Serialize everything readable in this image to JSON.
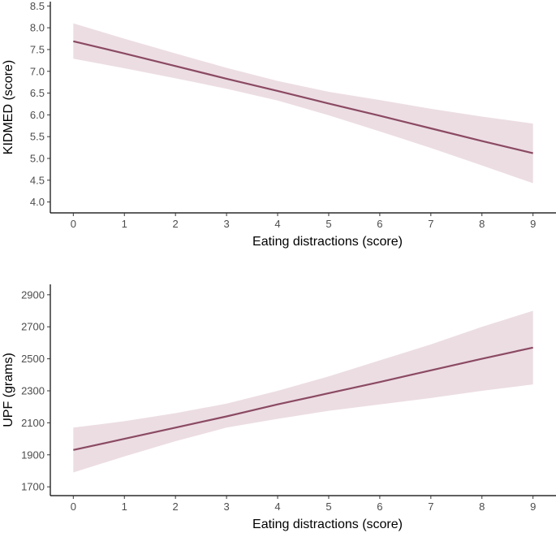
{
  "colors": {
    "line": "#8b4a62",
    "band": "#ecdde3",
    "axis": "#000000",
    "tick_text": "#4d4d4d"
  },
  "chart_data": [
    {
      "type": "line",
      "title": "",
      "xlabel": "Eating distractions (score)",
      "ylabel": "KIDMED (score)",
      "xlim": [
        -0.45,
        9.45
      ],
      "ylim": [
        3.75,
        8.6
      ],
      "x_ticks": [
        0,
        1,
        2,
        3,
        4,
        5,
        6,
        7,
        8,
        9
      ],
      "x_tick_labels": [
        "0",
        "1",
        "2",
        "3",
        "4",
        "5",
        "6",
        "7",
        "8",
        "9"
      ],
      "y_ticks": [
        4.0,
        4.5,
        5.0,
        5.5,
        6.0,
        6.5,
        7.0,
        7.5,
        8.0,
        8.5
      ],
      "y_tick_labels": [
        "4.0",
        "4.5",
        "5.0",
        "5.5",
        "6.0",
        "6.5",
        "7.0",
        "7.5",
        "8.0",
        "8.5"
      ],
      "grid": false,
      "series": [
        {
          "x": [
            0,
            1,
            2,
            3,
            4,
            5,
            6,
            7,
            8,
            9
          ],
          "y": [
            7.69,
            7.41,
            7.12,
            6.83,
            6.55,
            6.26,
            5.98,
            5.69,
            5.4,
            5.12
          ],
          "lower": [
            7.29,
            7.07,
            6.84,
            6.6,
            6.33,
            5.99,
            5.62,
            5.24,
            4.84,
            4.43
          ],
          "upper": [
            8.1,
            7.75,
            7.41,
            7.08,
            6.78,
            6.53,
            6.34,
            6.14,
            5.96,
            5.8
          ]
        }
      ]
    },
    {
      "type": "line",
      "title": "",
      "xlabel": "Eating distractions (score)",
      "ylabel": "UPF (grams)",
      "xlim": [
        -0.45,
        9.45
      ],
      "ylim": [
        1645,
        2965
      ],
      "x_ticks": [
        0,
        1,
        2,
        3,
        4,
        5,
        6,
        7,
        8,
        9
      ],
      "x_tick_labels": [
        "0",
        "1",
        "2",
        "3",
        "4",
        "5",
        "6",
        "7",
        "8",
        "9"
      ],
      "y_ticks": [
        1700,
        1900,
        2100,
        2300,
        2500,
        2700,
        2900
      ],
      "y_tick_labels": [
        "1700",
        "1900",
        "2100",
        "2300",
        "2500",
        "2700",
        "2900"
      ],
      "grid": false,
      "series": [
        {
          "x": [
            0,
            1,
            2,
            3,
            4,
            5,
            6,
            7,
            8,
            9
          ],
          "y": [
            1930,
            2000,
            2070,
            2140,
            2215,
            2285,
            2355,
            2428,
            2500,
            2570
          ],
          "lower": [
            1790,
            1890,
            1985,
            2070,
            2125,
            2175,
            2215,
            2255,
            2300,
            2340
          ],
          "upper": [
            2070,
            2110,
            2160,
            2220,
            2300,
            2390,
            2490,
            2590,
            2700,
            2800
          ]
        }
      ]
    }
  ]
}
